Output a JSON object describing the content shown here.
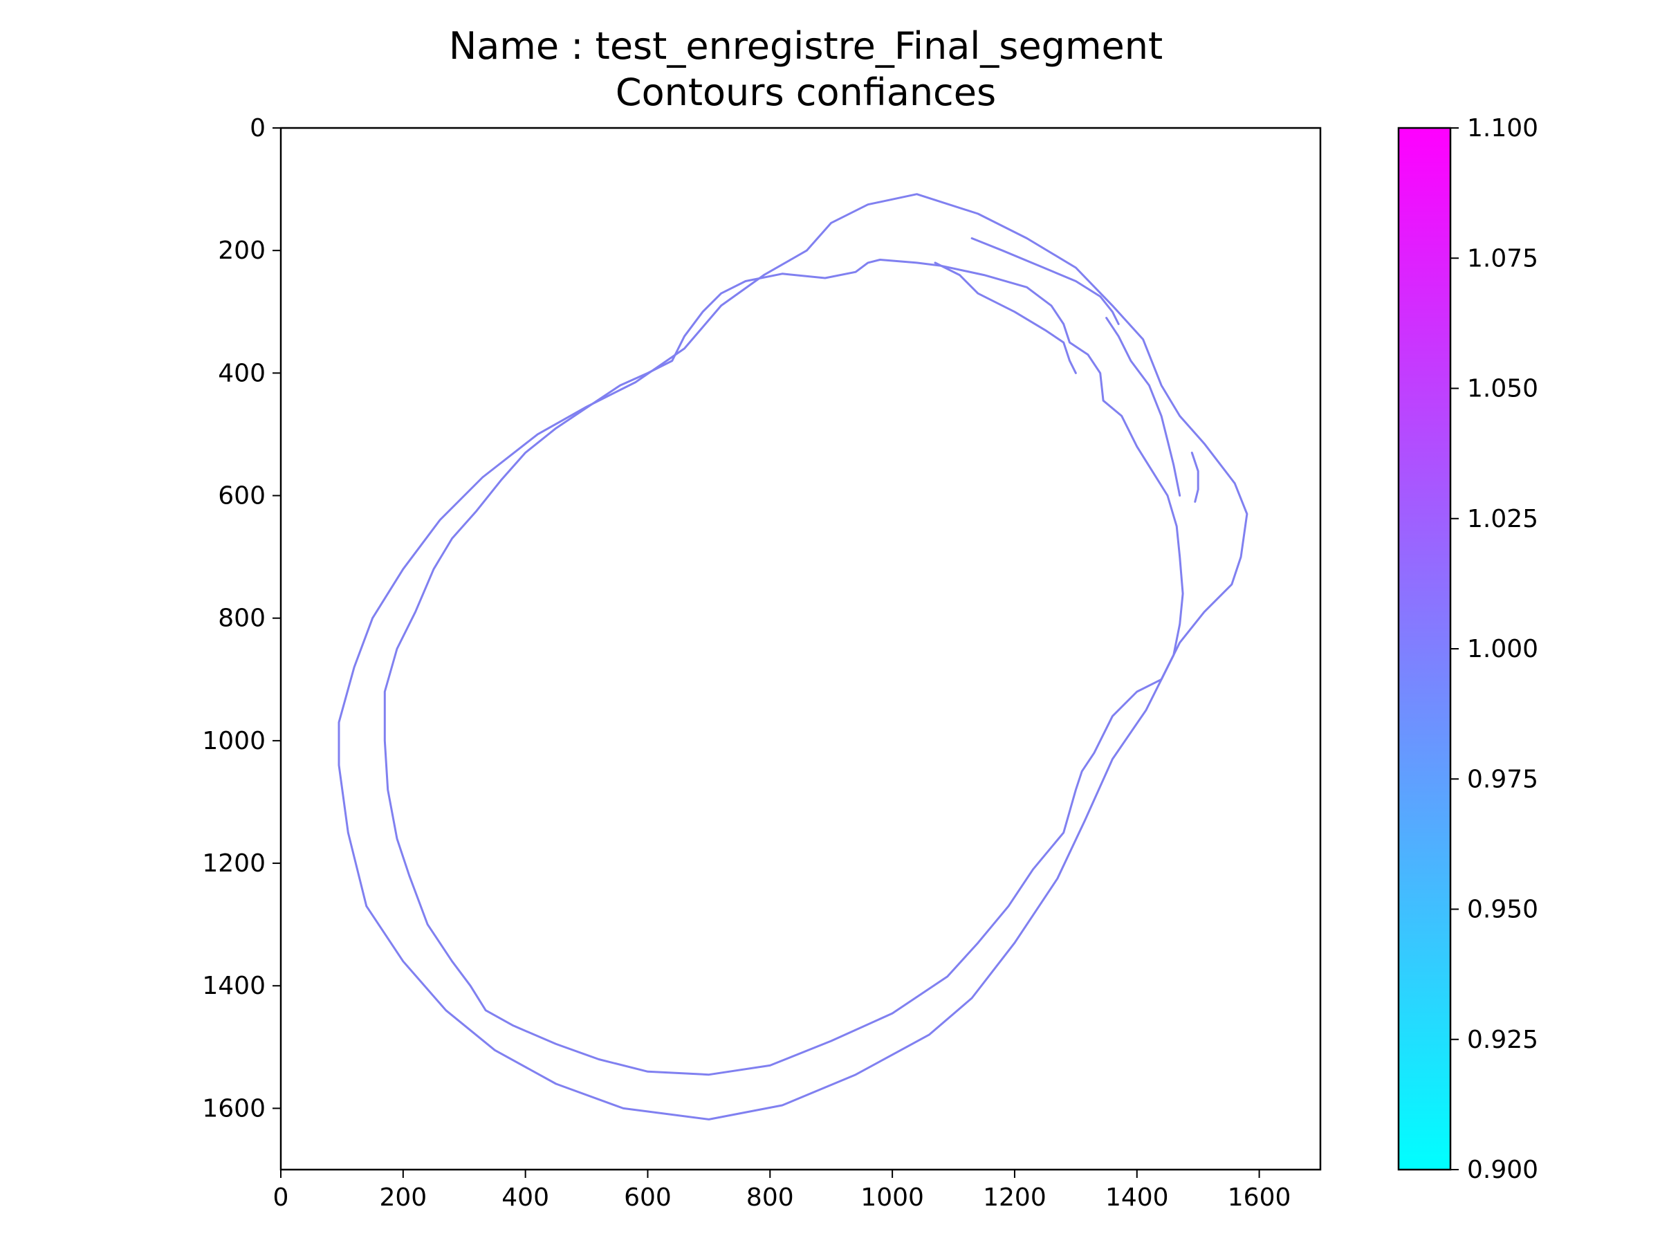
{
  "chart_data": {
    "type": "scatter",
    "title": "Name : test_enregistre_Final_segment",
    "subtitle": "Contours confiances",
    "xlabel": "",
    "ylabel": "",
    "xlim": [
      0,
      1700
    ],
    "ylim": [
      1700,
      0
    ],
    "y_inverted": true,
    "grid": false,
    "x_ticks": [
      0,
      200,
      400,
      600,
      800,
      1000,
      1200,
      1400,
      1600
    ],
    "x_tick_labels": [
      "0",
      "200",
      "400",
      "600",
      "800",
      "1000",
      "1200",
      "1400",
      "1600"
    ],
    "y_ticks": [
      0,
      200,
      400,
      600,
      800,
      1000,
      1200,
      1400,
      1600
    ],
    "y_tick_labels": [
      "0",
      "200",
      "400",
      "600",
      "800",
      "1000",
      "1200",
      "1400",
      "1600"
    ],
    "line_color": "#8080f0",
    "colorbar": {
      "min": 0.9,
      "max": 1.1,
      "colormap": "cool",
      "color_low": "#00ffff",
      "color_high": "#ff00ff",
      "ticks": [
        0.9,
        0.925,
        0.95,
        0.975,
        1.0,
        1.025,
        1.05,
        1.075,
        1.1
      ],
      "tick_labels": [
        "0.900",
        "0.925",
        "0.950",
        "0.975",
        "1.000",
        "1.025",
        "1.050",
        "1.075",
        "1.100"
      ]
    },
    "series": [
      {
        "confidence": 1.0,
        "points": [
          [
            900,
            155
          ],
          [
            960,
            125
          ],
          [
            1040,
            108
          ],
          [
            1140,
            140
          ],
          [
            1220,
            180
          ],
          [
            1300,
            228
          ],
          [
            1360,
            290
          ],
          [
            1410,
            345
          ],
          [
            1440,
            420
          ],
          [
            1470,
            470
          ],
          [
            1510,
            515
          ],
          [
            1560,
            580
          ],
          [
            1580,
            630
          ],
          [
            1570,
            700
          ],
          [
            1555,
            745
          ],
          [
            1510,
            790
          ],
          [
            1470,
            840
          ],
          [
            1450,
            880
          ],
          [
            1415,
            950
          ],
          [
            1360,
            1030
          ],
          [
            1315,
            1130
          ],
          [
            1270,
            1225
          ],
          [
            1200,
            1330
          ],
          [
            1130,
            1420
          ],
          [
            1060,
            1480
          ],
          [
            940,
            1545
          ],
          [
            820,
            1595
          ],
          [
            700,
            1618
          ],
          [
            560,
            1600
          ],
          [
            450,
            1560
          ],
          [
            350,
            1505
          ],
          [
            270,
            1440
          ],
          [
            200,
            1360
          ],
          [
            140,
            1270
          ],
          [
            110,
            1150
          ],
          [
            95,
            1040
          ],
          [
            95,
            970
          ],
          [
            120,
            880
          ],
          [
            150,
            800
          ],
          [
            200,
            720
          ],
          [
            260,
            640
          ],
          [
            330,
            570
          ],
          [
            420,
            500
          ],
          [
            500,
            455
          ],
          [
            580,
            415
          ],
          [
            660,
            360
          ],
          [
            720,
            290
          ],
          [
            790,
            240
          ],
          [
            860,
            200
          ],
          [
            900,
            155
          ]
        ]
      },
      {
        "confidence": 1.0,
        "points": [
          [
            220,
            790
          ],
          [
            190,
            850
          ],
          [
            170,
            920
          ],
          [
            170,
            1000
          ],
          [
            175,
            1080
          ],
          [
            190,
            1160
          ],
          [
            210,
            1220
          ],
          [
            240,
            1300
          ],
          [
            280,
            1360
          ],
          [
            310,
            1400
          ],
          [
            335,
            1440
          ],
          [
            380,
            1465
          ],
          [
            450,
            1495
          ],
          [
            520,
            1520
          ],
          [
            600,
            1540
          ],
          [
            700,
            1545
          ],
          [
            800,
            1530
          ],
          [
            900,
            1490
          ],
          [
            1000,
            1445
          ],
          [
            1090,
            1385
          ],
          [
            1140,
            1330
          ],
          [
            1190,
            1270
          ],
          [
            1230,
            1210
          ],
          [
            1280,
            1150
          ],
          [
            1300,
            1080
          ],
          [
            1310,
            1050
          ],
          [
            1330,
            1020
          ],
          [
            1360,
            960
          ],
          [
            1400,
            920
          ],
          [
            1440,
            900
          ],
          [
            1460,
            860
          ],
          [
            1470,
            810
          ],
          [
            1475,
            760
          ],
          [
            1470,
            700
          ],
          [
            1465,
            650
          ],
          [
            1450,
            600
          ],
          [
            1425,
            560
          ],
          [
            1400,
            520
          ],
          [
            1375,
            470
          ],
          [
            1345,
            445
          ],
          [
            1340,
            400
          ],
          [
            1320,
            370
          ],
          [
            1290,
            350
          ],
          [
            1280,
            320
          ],
          [
            1260,
            290
          ],
          [
            1220,
            260
          ],
          [
            1150,
            240
          ],
          [
            1080,
            225
          ],
          [
            1040,
            220
          ],
          [
            980,
            215
          ],
          [
            960,
            220
          ],
          [
            940,
            235
          ],
          [
            890,
            245
          ],
          [
            820,
            238
          ],
          [
            760,
            250
          ],
          [
            720,
            270
          ],
          [
            690,
            300
          ],
          [
            660,
            340
          ],
          [
            640,
            380
          ],
          [
            600,
            400
          ],
          [
            555,
            420
          ],
          [
            510,
            450
          ],
          [
            450,
            490
          ],
          [
            400,
            530
          ],
          [
            360,
            575
          ],
          [
            320,
            625
          ],
          [
            280,
            670
          ],
          [
            250,
            720
          ],
          [
            220,
            790
          ]
        ]
      },
      {
        "confidence": 1.0,
        "points": [
          [
            1130,
            180
          ],
          [
            1180,
            200
          ],
          [
            1240,
            225
          ],
          [
            1300,
            250
          ],
          [
            1340,
            275
          ],
          [
            1360,
            300
          ],
          [
            1370,
            320
          ]
        ]
      },
      {
        "confidence": 1.0,
        "points": [
          [
            1350,
            310
          ],
          [
            1370,
            340
          ],
          [
            1390,
            380
          ],
          [
            1420,
            420
          ],
          [
            1440,
            470
          ],
          [
            1450,
            510
          ],
          [
            1460,
            550
          ],
          [
            1470,
            600
          ]
        ]
      },
      {
        "confidence": 1.0,
        "points": [
          [
            1490,
            530
          ],
          [
            1500,
            560
          ],
          [
            1500,
            590
          ],
          [
            1495,
            610
          ]
        ]
      },
      {
        "confidence": 1.0,
        "points": [
          [
            1070,
            220
          ],
          [
            1110,
            240
          ],
          [
            1140,
            270
          ],
          [
            1200,
            300
          ],
          [
            1250,
            330
          ],
          [
            1280,
            350
          ],
          [
            1290,
            380
          ],
          [
            1300,
            400
          ]
        ]
      }
    ]
  }
}
